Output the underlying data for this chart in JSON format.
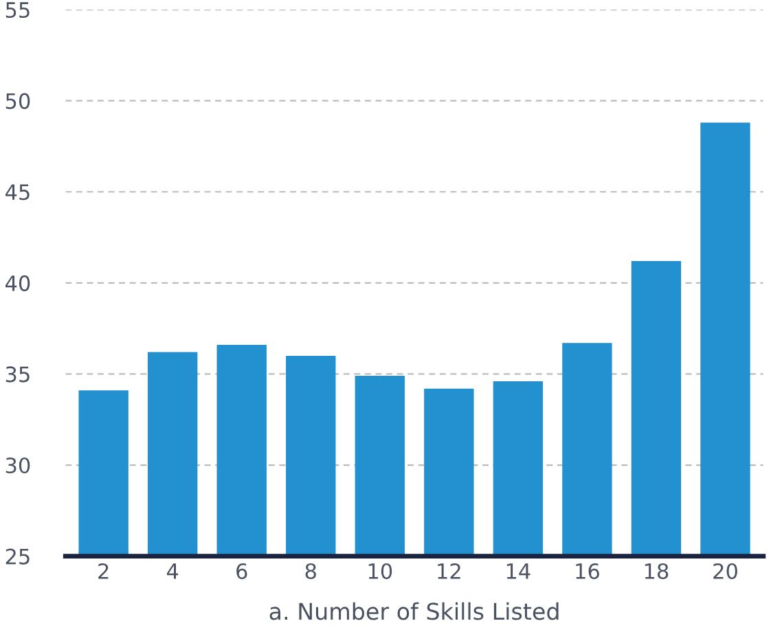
{
  "chart_data": {
    "type": "bar",
    "xlabel": "a. Number of Skills Listed",
    "categories": [
      "2",
      "4",
      "6",
      "8",
      "10",
      "12",
      "14",
      "16",
      "18",
      "20"
    ],
    "values": [
      34.1,
      36.2,
      36.6,
      36.0,
      34.9,
      34.2,
      34.6,
      36.7,
      41.2,
      48.8
    ],
    "color": "#2391d0",
    "ylim": [
      25,
      55
    ],
    "yticks": [
      25,
      30,
      35,
      40,
      45,
      50,
      55
    ],
    "grid": "y"
  }
}
